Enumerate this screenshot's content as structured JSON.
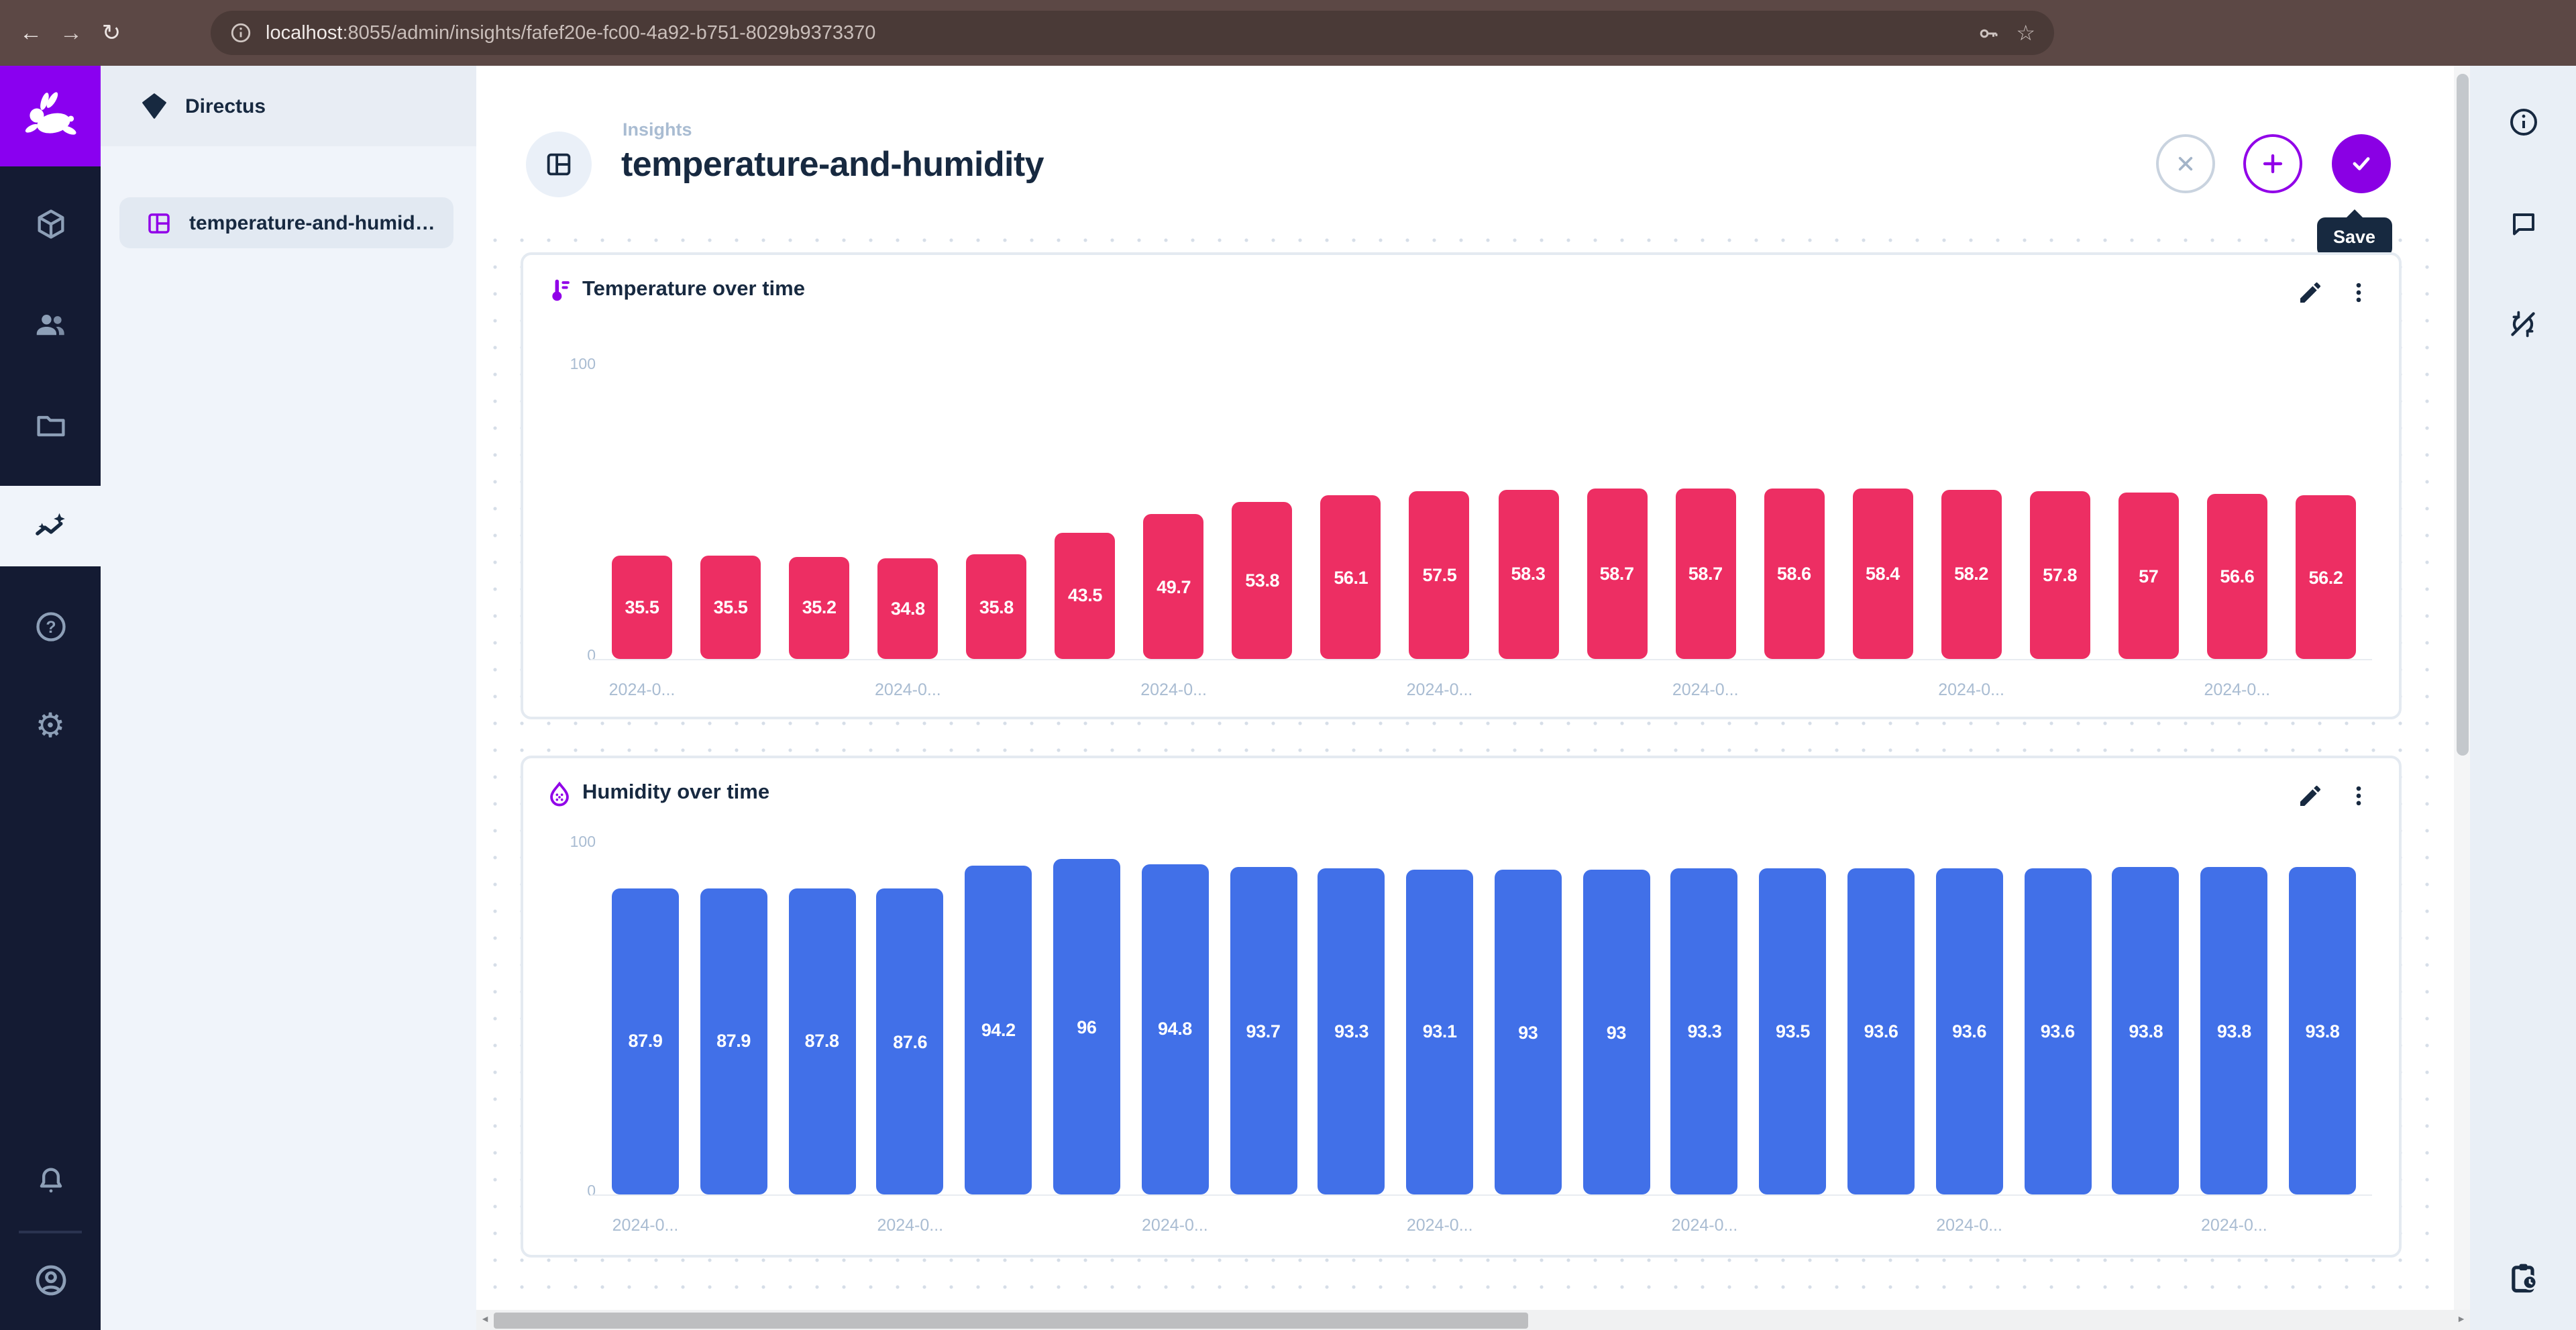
{
  "browser": {
    "back_glyph": "←",
    "forward_glyph": "→",
    "reload_glyph": "↻",
    "bookmark_glyph": "☆",
    "url_host": "localhost",
    "url_rest": ":8055/admin/insights/fafef20e-fc00-4a92-b751-8029b9373370"
  },
  "module_bar": {
    "settings_glyph": "⚙"
  },
  "sidebar": {
    "project_name": "Directus",
    "nav_item_label": "temperature-and-humidity"
  },
  "header": {
    "breadcrumb": "Insights",
    "title": "temperature-and-humidity",
    "save_tooltip": "Save"
  },
  "scrollbar": {
    "left_glyph": "◄",
    "right_glyph": "►"
  },
  "chart_data": [
    {
      "type": "bar",
      "title": "Temperature over time",
      "color": "#ed2e63",
      "label_color": "#ffffff",
      "ylim": [
        0,
        100
      ],
      "y_max_label": "100",
      "y_min_label": "0",
      "grid": false,
      "legend_position": "none",
      "categories": [
        "2024-0...",
        "",
        "",
        "2024-0...",
        "",
        "",
        "2024-0...",
        "",
        "",
        "2024-0...",
        "",
        "",
        "2024-0...",
        "",
        "",
        "2024-0...",
        "",
        "",
        "2024-0...",
        ""
      ],
      "values": [
        35.5,
        35.5,
        35.2,
        34.8,
        35.8,
        43.5,
        49.7,
        53.8,
        56.1,
        57.5,
        58.3,
        58.7,
        58.7,
        58.6,
        58.4,
        58.2,
        57.8,
        57,
        56.6,
        56.2
      ]
    },
    {
      "type": "bar",
      "title": "Humidity over time",
      "color": "#4170e8",
      "label_color": "#ffffff",
      "ylim": [
        0,
        100
      ],
      "y_max_label": "100",
      "y_min_label": "0",
      "grid": false,
      "legend_position": "none",
      "categories": [
        "2024-0...",
        "",
        "",
        "2024-0...",
        "",
        "",
        "2024-0...",
        "",
        "",
        "2024-0...",
        "",
        "",
        "2024-0...",
        "",
        "",
        "2024-0...",
        "",
        "",
        "2024-0...",
        ""
      ],
      "values": [
        87.9,
        87.9,
        87.8,
        87.6,
        94.2,
        96,
        94.8,
        93.7,
        93.3,
        93.1,
        93,
        93,
        93.3,
        93.5,
        93.6,
        93.6,
        93.6,
        93.8,
        93.8,
        93.8
      ]
    }
  ]
}
